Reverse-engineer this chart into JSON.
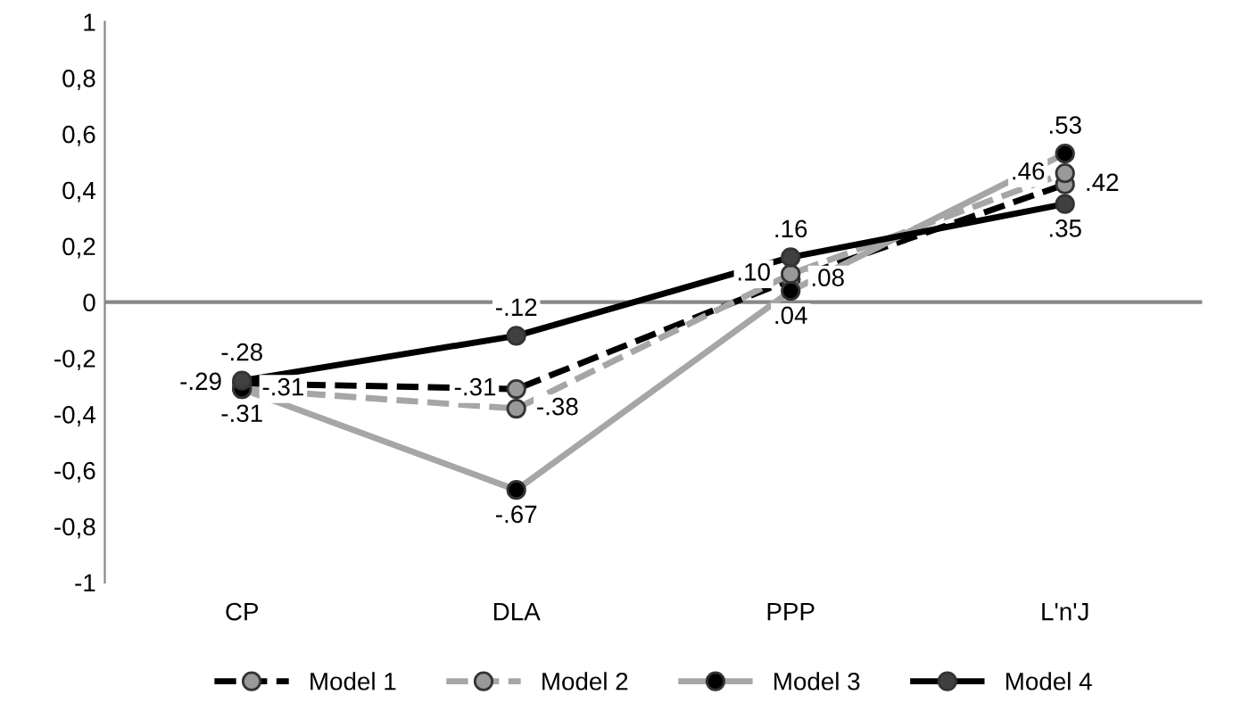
{
  "chart_data": {
    "type": "line",
    "categories": [
      "CP",
      "DLA",
      "PPP",
      "L'n'J"
    ],
    "series": [
      {
        "name": "Model 1",
        "color": "#000000",
        "colors": [
          "#999999",
          "#999999",
          "#999999",
          "#999999"
        ],
        "line_style": "dashed",
        "values": [
          -0.29,
          -0.31,
          0.08,
          0.42
        ],
        "value_labels": [
          "-.29",
          "-.31",
          ".08",
          ".42"
        ]
      },
      {
        "name": "Model 2",
        "color": "#a6a6a6",
        "colors": [
          "#999999",
          "#999999",
          "#999999",
          "#999999"
        ],
        "line_style": "dashed",
        "values": [
          -0.31,
          -0.38,
          0.1,
          0.46
        ],
        "value_labels": [
          "-.31",
          "-.38",
          ".10",
          ".46"
        ]
      },
      {
        "name": "Model 3",
        "color": "#a6a6a6",
        "colors": [
          "#000000",
          "#000000",
          "#000000",
          "#000000"
        ],
        "line_style": "solid",
        "values": [
          -0.31,
          -0.67,
          0.04,
          0.53
        ],
        "value_labels": [
          "-.31",
          "-.67",
          ".04",
          ".53"
        ]
      },
      {
        "name": "Model 4",
        "color": "#000000",
        "colors": [
          "#404040",
          "#404040",
          "#404040",
          "#404040"
        ],
        "line_style": "solid",
        "values": [
          -0.28,
          -0.12,
          0.16,
          0.35
        ],
        "value_labels": [
          "-.28",
          "-.12",
          ".16",
          ".35"
        ]
      }
    ],
    "marker": "circle",
    "ylim": [
      -1,
      1
    ],
    "yticks": [
      {
        "value": -1,
        "label": "-1"
      },
      {
        "value": -0.8,
        "label": "-0,8"
      },
      {
        "value": -0.6,
        "label": "-0,6"
      },
      {
        "value": -0.4,
        "label": "-0,4"
      },
      {
        "value": -0.2,
        "label": "-0,2"
      },
      {
        "value": 0,
        "label": "0"
      },
      {
        "value": 0.2,
        "label": "0,2"
      },
      {
        "value": 0.4,
        "label": "0,4"
      },
      {
        "value": 0.6,
        "label": "0,6"
      },
      {
        "value": 0.8,
        "label": "0,8"
      },
      {
        "value": 1,
        "label": "1"
      }
    ],
    "ref_lines": [
      {
        "axis": "y",
        "value": 0,
        "color": "#888888"
      }
    ],
    "grid": false,
    "legend": "bottom"
  }
}
